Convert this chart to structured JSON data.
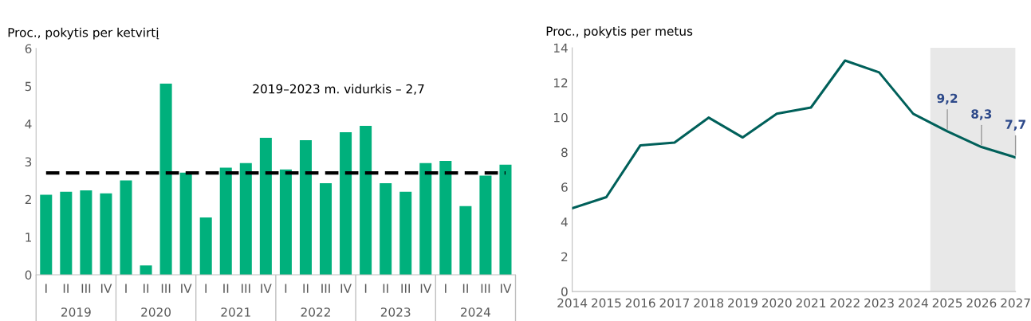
{
  "chart_data": [
    {
      "type": "bar",
      "ylabel": "Proc., pokytis per ketvirtį",
      "categories": [
        "I",
        "II",
        "III",
        "IV",
        "I",
        "II",
        "III",
        "IV",
        "I",
        "II",
        "III",
        "IV",
        "I",
        "II",
        "III",
        "IV",
        "I",
        "II",
        "III",
        "IV",
        "I",
        "II",
        "III",
        "IV"
      ],
      "annotations": [
        "2019",
        "2020",
        "2021",
        "2022",
        "2023",
        "2024"
      ],
      "values": [
        2.12,
        2.2,
        2.24,
        2.16,
        2.5,
        0.25,
        5.07,
        2.71,
        1.52,
        2.84,
        2.96,
        3.63,
        2.79,
        3.57,
        2.43,
        3.78,
        3.95,
        2.43,
        2.2,
        2.96,
        3.02,
        1.82,
        2.63,
        2.92
      ],
      "color": "#00b07c",
      "ylim": [
        0,
        6
      ],
      "yticks": [
        0,
        1,
        2,
        3,
        4,
        5,
        6
      ],
      "grid": false,
      "legend": false,
      "ref_lines": [
        {
          "axis": "y",
          "value": 2.7,
          "label": "2019–2023 m. vidurkis – 2,7",
          "color": "#000000",
          "line_style": "dashed"
        }
      ]
    },
    {
      "type": "line",
      "ylabel": "Proc., pokytis per metus",
      "x": [
        2014,
        2015,
        2016,
        2017,
        2018,
        2019,
        2020,
        2021,
        2022,
        2023,
        2024,
        2025,
        2026,
        2027
      ],
      "values": [
        4.78,
        5.42,
        8.4,
        8.56,
        9.99,
        8.85,
        10.21,
        10.57,
        13.27,
        12.59,
        10.21,
        9.2,
        8.3,
        7.7
      ],
      "value_labels": [
        null,
        null,
        null,
        null,
        null,
        null,
        null,
        null,
        null,
        null,
        null,
        "9,2",
        "8,3",
        "7,7"
      ],
      "color": "#00605a",
      "xlim": [
        2014,
        2027
      ],
      "xticks": [
        2014,
        2015,
        2016,
        2017,
        2018,
        2019,
        2020,
        2021,
        2022,
        2023,
        2024,
        2025,
        2026,
        2027
      ],
      "ylim": [
        0,
        14
      ],
      "yticks": [
        0,
        2,
        4,
        6,
        8,
        10,
        12,
        14
      ],
      "grid": false,
      "legend": false,
      "marker": "none",
      "line_style": "solid",
      "bands": [
        {
          "axis": "x",
          "from": 2024.5,
          "to": 2027,
          "color": "#e8e8e8"
        }
      ]
    }
  ]
}
